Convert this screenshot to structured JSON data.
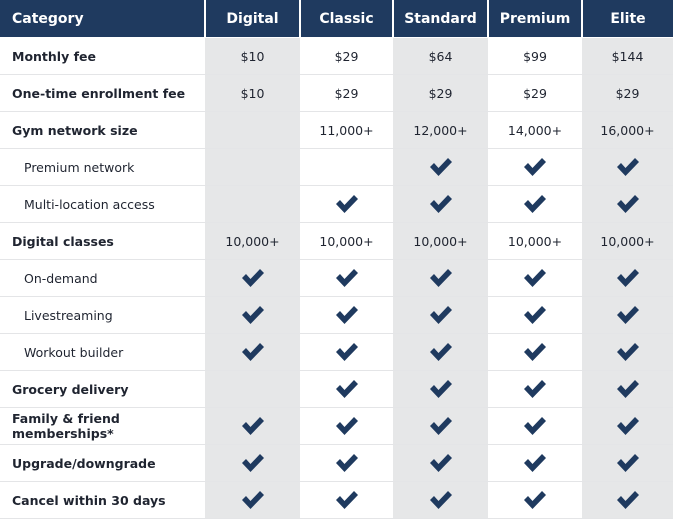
{
  "table": {
    "header": [
      "Category",
      "Digital",
      "Classic",
      "Standard",
      "Premium",
      "Elite"
    ],
    "rows": [
      {
        "label": "Monthly fee",
        "cells": [
          "$10",
          "$29",
          "$64",
          "$99",
          "$144"
        ]
      },
      {
        "label": "One-time enrollment fee",
        "cells": [
          "$10",
          "$29",
          "$29",
          "$29",
          "$29"
        ]
      },
      {
        "label": "Gym network size",
        "cells": [
          null,
          "11,000+",
          "12,000+",
          "14,000+",
          "16,000+"
        ]
      },
      {
        "label": "Premium network",
        "cells": [
          null,
          null,
          true,
          true,
          true
        ]
      },
      {
        "label": "Multi-location access",
        "cells": [
          null,
          true,
          true,
          true,
          true
        ]
      },
      {
        "label": "Digital classes",
        "cells": [
          "10,000+",
          "10,000+",
          "10,000+",
          "10,000+",
          "10,000+"
        ]
      },
      {
        "label": "On-demand",
        "cells": [
          true,
          true,
          true,
          true,
          true
        ]
      },
      {
        "label": "Livestreaming",
        "cells": [
          true,
          true,
          true,
          true,
          true
        ]
      },
      {
        "label": "Workout builder",
        "cells": [
          true,
          true,
          true,
          true,
          true
        ]
      },
      {
        "label": "Grocery delivery",
        "cells": [
          null,
          true,
          true,
          true,
          true
        ]
      },
      {
        "label": "Family & friend memberships*",
        "cells": [
          true,
          true,
          true,
          true,
          true
        ]
      },
      {
        "label": "Upgrade/downgrade",
        "cells": [
          true,
          true,
          true,
          true,
          true
        ]
      },
      {
        "label": "Cancel within 30 days",
        "cells": [
          true,
          true,
          true,
          true,
          true
        ]
      }
    ]
  }
}
